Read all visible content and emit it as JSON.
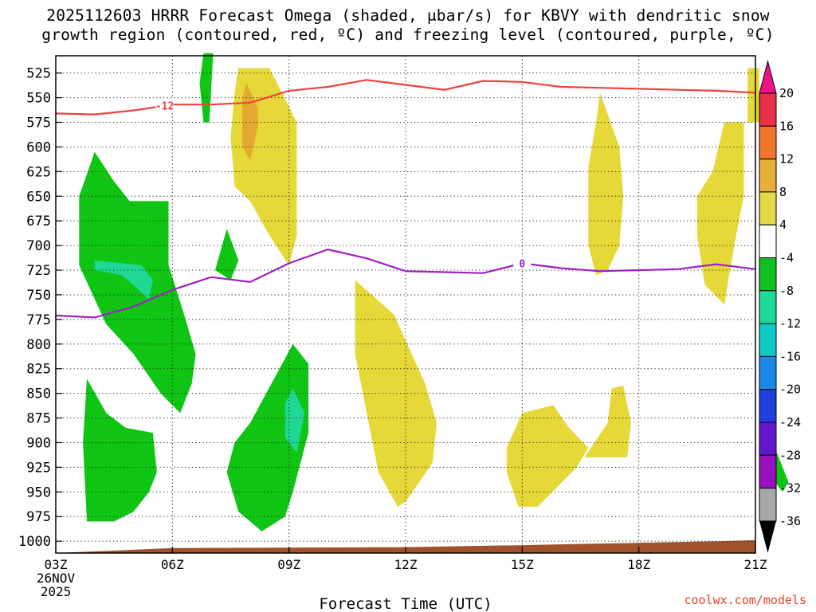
{
  "title": {
    "line1": "2025112603 HRRR Forecast Omega (shaded, μbar/s) for KBVY with dendritic snow",
    "line2": "growth region (contoured, red, ºC) and freezing level (contoured, purple, ºC)"
  },
  "credit": "coolwx.com/models",
  "chart_data": {
    "type": "contour",
    "title": "2025112603 HRRR Forecast Omega (shaded, μbar/s) for KBVY",
    "xlabel": "Forecast Time (UTC)",
    "ylabel": "",
    "x_ticks": [
      {
        "hour": 0,
        "label": "03Z"
      },
      {
        "hour": 3,
        "label": "06Z"
      },
      {
        "hour": 6,
        "label": "09Z"
      },
      {
        "hour": 9,
        "label": "12Z"
      },
      {
        "hour": 12,
        "label": "15Z"
      },
      {
        "hour": 15,
        "label": "18Z"
      },
      {
        "hour": 18,
        "label": "21Z"
      }
    ],
    "x_start_date": "26NOV",
    "x_start_year": "2025",
    "y_ticks": [
      525,
      550,
      575,
      600,
      625,
      650,
      675,
      700,
      725,
      750,
      775,
      800,
      825,
      850,
      875,
      900,
      925,
      950,
      975,
      1000
    ],
    "colorbar": {
      "labels": [
        "20",
        "16",
        "12",
        "8",
        "4",
        "-4",
        "-8",
        "-12",
        "-16",
        "-20",
        "-24",
        "-28",
        "-32",
        "-36"
      ],
      "colors": [
        "#e8304a",
        "#f0782a",
        "#e8b03a",
        "#e6d848",
        "#ffffff",
        "#10c020",
        "#20d898",
        "#10c8c8",
        "#1a8ae8",
        "#2040e0",
        "#6018c8",
        "#9a10c0",
        "#a8a8a8"
      ],
      "top_color": "#ee1288",
      "bottom_color": "#000000"
    },
    "omega_colors": {
      "yellow": "#e6d838",
      "orange": "#e4aa30",
      "green": "#10c414",
      "teal": "#1ed894",
      "terrain": "#a0522d"
    },
    "contours": [
      {
        "name": "-12 °C isotherm (dendritic growth)",
        "color": "#f04040",
        "label": "-12",
        "label_at": {
          "hour": 2.8,
          "p": 558
        },
        "points": [
          [
            0,
            566
          ],
          [
            1,
            567
          ],
          [
            2,
            563
          ],
          [
            3,
            557
          ],
          [
            4,
            557
          ],
          [
            5,
            555
          ],
          [
            6,
            543
          ],
          [
            7,
            539
          ],
          [
            8,
            532
          ],
          [
            9,
            537
          ],
          [
            10,
            542
          ],
          [
            11,
            533
          ],
          [
            12,
            534
          ],
          [
            13,
            539
          ],
          [
            14,
            540
          ],
          [
            15,
            541
          ],
          [
            16,
            542
          ],
          [
            17,
            543
          ],
          [
            18,
            545
          ]
        ]
      },
      {
        "name": "0 °C freezing level",
        "color": "#a020c0",
        "label": "0",
        "label_at": {
          "hour": 12,
          "p": 718
        },
        "points": [
          [
            0,
            771
          ],
          [
            1,
            773
          ],
          [
            2,
            762
          ],
          [
            3,
            745
          ],
          [
            4,
            732
          ],
          [
            5,
            737
          ],
          [
            6,
            718
          ],
          [
            7,
            704
          ],
          [
            8,
            713
          ],
          [
            9,
            726
          ],
          [
            10,
            727
          ],
          [
            11,
            728
          ],
          [
            12,
            718
          ],
          [
            13,
            723
          ],
          [
            14,
            726
          ],
          [
            15,
            725
          ],
          [
            16,
            724
          ],
          [
            17,
            719
          ],
          [
            18,
            724
          ]
        ]
      }
    ],
    "regions": [
      {
        "value": "4 to 8",
        "color_key": "yellow",
        "points": [
          [
            4.7,
            520
          ],
          [
            5.5,
            520
          ],
          [
            6.2,
            575
          ],
          [
            6.2,
            690
          ],
          [
            6.0,
            720
          ],
          [
            5.5,
            690
          ],
          [
            5.0,
            655
          ],
          [
            4.6,
            640
          ],
          [
            4.5,
            590
          ],
          [
            4.6,
            545
          ]
        ]
      },
      {
        "value": "8 to 12",
        "color_key": "orange",
        "points": [
          [
            4.9,
            535
          ],
          [
            5.2,
            560
          ],
          [
            5.2,
            580
          ],
          [
            5.0,
            614
          ],
          [
            4.8,
            600
          ],
          [
            4.8,
            550
          ]
        ]
      },
      {
        "value": "4 to 8",
        "color_key": "yellow",
        "points": [
          [
            7.7,
            735
          ],
          [
            8.7,
            770
          ],
          [
            9.5,
            840
          ],
          [
            9.8,
            880
          ],
          [
            9.7,
            920
          ],
          [
            9.0,
            960
          ],
          [
            8.8,
            965
          ],
          [
            8.3,
            930
          ],
          [
            8.0,
            870
          ],
          [
            7.7,
            810
          ]
        ]
      },
      {
        "value": "4 to 8",
        "color_key": "yellow",
        "points": [
          [
            12.0,
            870
          ],
          [
            12.8,
            862
          ],
          [
            13.2,
            885
          ],
          [
            13.7,
            905
          ],
          [
            13.4,
            925
          ],
          [
            12.4,
            965
          ],
          [
            11.9,
            965
          ],
          [
            11.6,
            930
          ],
          [
            11.6,
            905
          ]
        ]
      },
      {
        "value": "4 to 8",
        "color_key": "yellow",
        "points": [
          [
            14.3,
            845
          ],
          [
            14.6,
            842
          ],
          [
            14.8,
            880
          ],
          [
            14.7,
            915
          ],
          [
            13.6,
            915
          ],
          [
            14.2,
            880
          ]
        ]
      },
      {
        "value": "4 to 8",
        "color_key": "yellow",
        "points": [
          [
            14.0,
            545
          ],
          [
            14.5,
            600
          ],
          [
            14.6,
            650
          ],
          [
            14.5,
            700
          ],
          [
            14.2,
            725
          ],
          [
            13.9,
            730
          ],
          [
            13.7,
            700
          ],
          [
            13.7,
            620
          ],
          [
            13.9,
            575
          ]
        ]
      },
      {
        "value": "4 to 8",
        "color_key": "yellow",
        "points": [
          [
            17.2,
            575
          ],
          [
            17.7,
            575
          ],
          [
            17.7,
            650
          ],
          [
            17.5,
            690
          ],
          [
            17.3,
            735
          ],
          [
            17.2,
            760
          ],
          [
            16.7,
            740
          ],
          [
            16.5,
            690
          ],
          [
            16.5,
            650
          ],
          [
            16.9,
            625
          ]
        ]
      },
      {
        "value": "4 to 8",
        "color_key": "yellow",
        "points": [
          [
            17.8,
            520
          ],
          [
            18.1,
            520
          ],
          [
            18.1,
            575
          ],
          [
            17.8,
            575
          ]
        ]
      },
      {
        "value": "-4 to -8",
        "color_key": "green",
        "points": [
          [
            1.0,
            605
          ],
          [
            1.5,
            635
          ],
          [
            1.9,
            655
          ],
          [
            2.9,
            655
          ],
          [
            2.9,
            720
          ],
          [
            3.3,
            770
          ],
          [
            3.6,
            810
          ],
          [
            3.5,
            840
          ],
          [
            3.2,
            870
          ],
          [
            2.7,
            850
          ],
          [
            2.0,
            810
          ],
          [
            1.3,
            780
          ],
          [
            0.6,
            720
          ],
          [
            0.6,
            650
          ]
        ]
      },
      {
        "value": "-4 to -8",
        "color_key": "green",
        "points": [
          [
            0.8,
            835
          ],
          [
            1.3,
            870
          ],
          [
            1.8,
            885
          ],
          [
            2.5,
            890
          ],
          [
            2.6,
            930
          ],
          [
            2.4,
            950
          ],
          [
            2.0,
            970
          ],
          [
            1.5,
            980
          ],
          [
            0.8,
            980
          ],
          [
            0.7,
            900
          ]
        ]
      },
      {
        "value": "-4 to -8",
        "color_key": "green",
        "points": [
          [
            3.8,
            505
          ],
          [
            4.05,
            505
          ],
          [
            3.95,
            575
          ],
          [
            3.8,
            575
          ],
          [
            3.7,
            535
          ]
        ]
      },
      {
        "value": "-4 to -8",
        "color_key": "green",
        "points": [
          [
            4.4,
            683
          ],
          [
            4.7,
            715
          ],
          [
            4.5,
            735
          ],
          [
            4.1,
            725
          ]
        ]
      },
      {
        "value": "-4 to -8",
        "color_key": "green",
        "points": [
          [
            6.1,
            800
          ],
          [
            6.5,
            820
          ],
          [
            6.5,
            890
          ],
          [
            6.1,
            950
          ],
          [
            5.9,
            975
          ],
          [
            5.3,
            990
          ],
          [
            4.7,
            970
          ],
          [
            4.4,
            930
          ],
          [
            4.6,
            900
          ],
          [
            5.0,
            880
          ]
        ]
      },
      {
        "value": "-4 to -8",
        "color_key": "green",
        "points": [
          [
            18.55,
            910
          ],
          [
            18.85,
            940
          ],
          [
            18.7,
            950
          ],
          [
            18.4,
            935
          ]
        ]
      },
      {
        "value": "-8 to -12",
        "color_key": "teal",
        "points": [
          [
            1.0,
            715
          ],
          [
            2.2,
            720
          ],
          [
            2.5,
            735
          ],
          [
            2.4,
            755
          ],
          [
            2.0,
            740
          ],
          [
            1.7,
            730
          ],
          [
            1.0,
            725
          ]
        ]
      },
      {
        "value": "-8 to -12",
        "color_key": "teal",
        "points": [
          [
            6.1,
            845
          ],
          [
            6.4,
            870
          ],
          [
            6.2,
            910
          ],
          [
            5.9,
            895
          ],
          [
            5.9,
            860
          ]
        ]
      }
    ],
    "terrain": {
      "points": [
        [
          0,
          1012
        ],
        [
          3,
          1007
        ],
        [
          9,
          1006
        ],
        [
          12,
          1004
        ],
        [
          17,
          1000
        ],
        [
          18,
          999
        ]
      ]
    }
  }
}
